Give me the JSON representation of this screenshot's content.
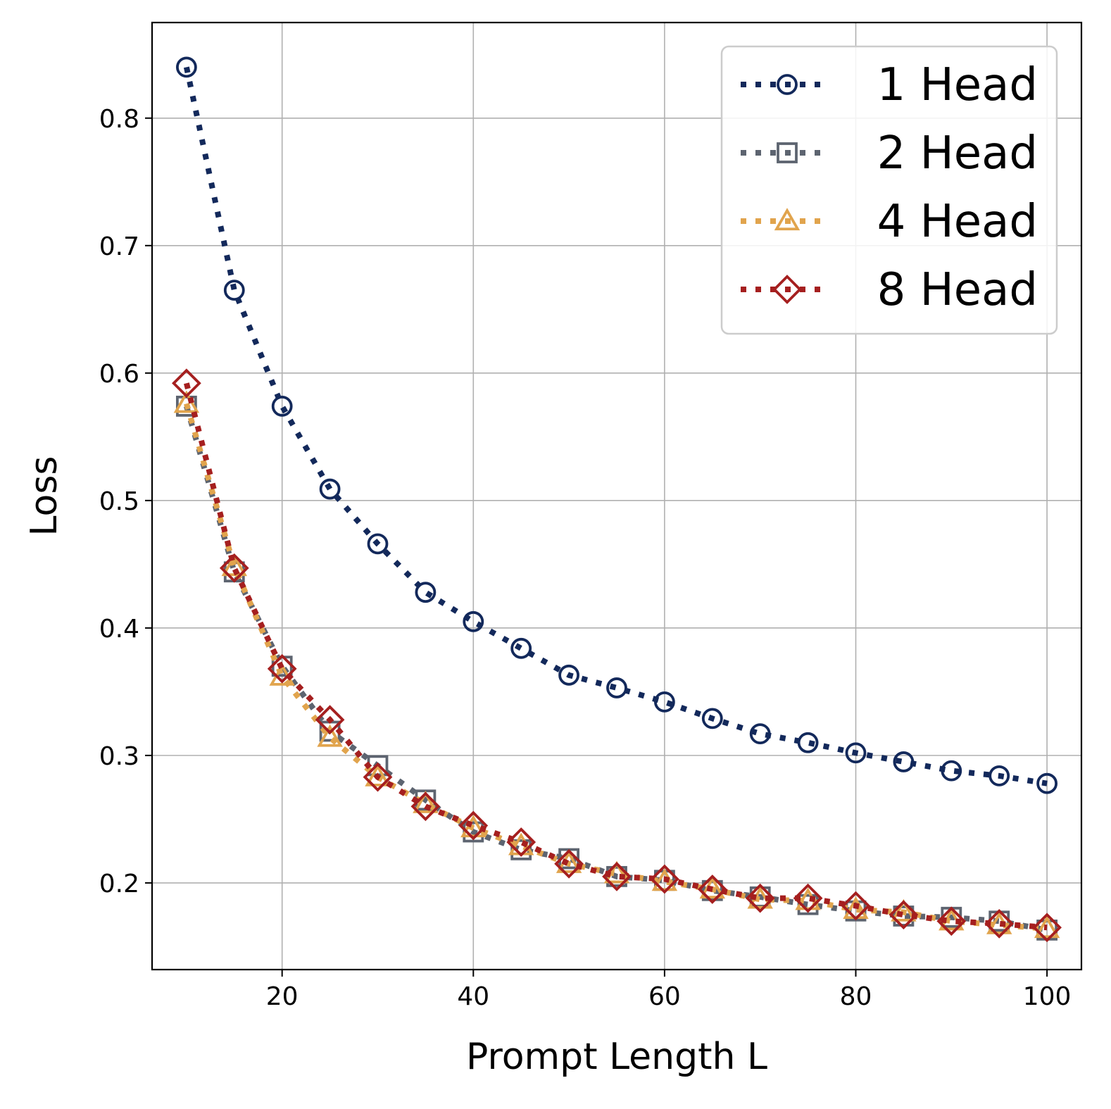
{
  "chart_data": {
    "type": "line",
    "xlabel": "Prompt Length L",
    "ylabel": "Loss",
    "xlim": [
      6.4,
      103.6
    ],
    "ylim": [
      0.132,
      0.875
    ],
    "xticks": [
      20,
      40,
      60,
      80,
      100
    ],
    "yticks": [
      0.2,
      0.3,
      0.4,
      0.5,
      0.6,
      0.7,
      0.8
    ],
    "xtick_labels": [
      "20",
      "40",
      "60",
      "80",
      "100"
    ],
    "ytick_labels": [
      "0.2",
      "0.3",
      "0.4",
      "0.5",
      "0.6",
      "0.7",
      "0.8"
    ],
    "grid": true,
    "legend_position": "top-right",
    "x": [
      10,
      15,
      20,
      25,
      30,
      35,
      40,
      45,
      50,
      55,
      60,
      65,
      70,
      75,
      80,
      85,
      90,
      95,
      100
    ],
    "series": [
      {
        "name": "1 Head",
        "color": "#13295b",
        "marker": "circle",
        "values": [
          0.84,
          0.665,
          0.574,
          0.509,
          0.466,
          0.428,
          0.405,
          0.384,
          0.363,
          0.353,
          0.342,
          0.329,
          0.317,
          0.31,
          0.302,
          0.295,
          0.288,
          0.284,
          0.278
        ]
      },
      {
        "name": "2 Head",
        "color": "#5d6470",
        "marker": "square",
        "values": [
          0.574,
          0.444,
          0.37,
          0.319,
          0.292,
          0.265,
          0.24,
          0.226,
          0.219,
          0.205,
          0.202,
          0.194,
          0.189,
          0.183,
          0.178,
          0.174,
          0.173,
          0.17,
          0.163
        ]
      },
      {
        "name": "4 Head",
        "color": "#e1a44d",
        "marker": "triangle",
        "values": [
          0.576,
          0.448,
          0.362,
          0.314,
          0.283,
          0.262,
          0.243,
          0.229,
          0.215,
          0.207,
          0.201,
          0.195,
          0.187,
          0.186,
          0.179,
          0.177,
          0.17,
          0.167,
          0.164
        ]
      },
      {
        "name": "8 Head",
        "color": "#a51f1f",
        "marker": "diamond",
        "values": [
          0.592,
          0.447,
          0.368,
          0.328,
          0.283,
          0.26,
          0.245,
          0.232,
          0.215,
          0.205,
          0.203,
          0.195,
          0.188,
          0.188,
          0.182,
          0.175,
          0.17,
          0.168,
          0.165
        ]
      }
    ]
  }
}
